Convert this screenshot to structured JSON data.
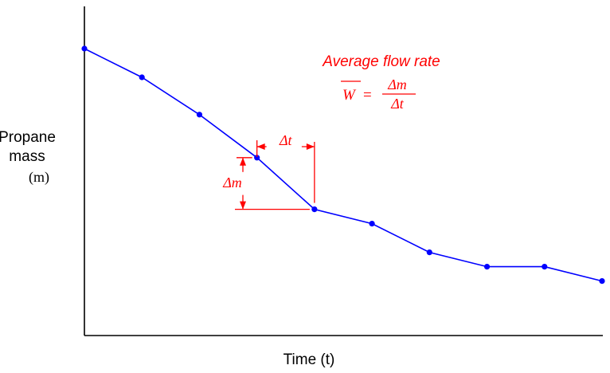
{
  "chart_data": {
    "type": "line",
    "xlabel": "Time (t)",
    "ylabel_line1": "Propane",
    "ylabel_line2": "mass",
    "ylabel_symbol": "(m)",
    "x": [
      0,
      1,
      2,
      3,
      4,
      5,
      6,
      7,
      8,
      9
    ],
    "values": [
      10,
      9,
      7.7,
      6.2,
      4.4,
      3.9,
      2.9,
      2.4,
      2.4,
      1.9
    ],
    "ylim": [
      0,
      12
    ],
    "grid": false,
    "line_color": "#0000ff",
    "point_color": "#0000ff",
    "annotation": {
      "title": "Average flow rate",
      "formula_lhs": "W",
      "formula_eq": "=",
      "numerator": "Δm",
      "denominator": "Δt",
      "delta_t": "Δt",
      "delta_m": "Δm",
      "color": "#ff0000",
      "segment_from_index": 3,
      "segment_to_index": 4
    }
  }
}
